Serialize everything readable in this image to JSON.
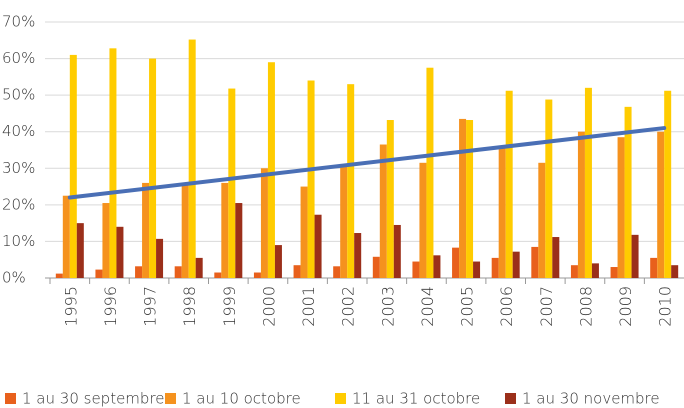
{
  "chart_data": {
    "type": "bar",
    "categories": [
      "1995",
      "1996",
      "1997",
      "1998",
      "1999",
      "2000",
      "2001",
      "2002",
      "2003",
      "2004",
      "2005",
      "2006",
      "2007",
      "2008",
      "2009",
      "2010"
    ],
    "series": [
      {
        "name": "1 au 30 septembre",
        "color": "#e8601c",
        "values": [
          1.2,
          2.3,
          3.2,
          3.2,
          1.5,
          1.5,
          3.5,
          3.2,
          5.8,
          4.5,
          8.3,
          5.5,
          8.5,
          3.5,
          3.0,
          5.5
        ]
      },
      {
        "name": "1 au 10 octobre",
        "color": "#f5921e",
        "values": [
          22.5,
          20.5,
          26,
          25.5,
          26,
          30,
          25,
          30.5,
          36.5,
          31.5,
          43.5,
          36,
          31.5,
          40,
          38.5,
          40
        ]
      },
      {
        "name": "11 au 31 octobre",
        "color": "#ffcc00",
        "values": [
          61,
          62.8,
          60,
          65.2,
          51.8,
          59,
          54,
          53,
          43.2,
          57.5,
          43.2,
          51.2,
          48.8,
          52,
          46.8,
          51.2
        ]
      },
      {
        "name": "1 au 30 novembre",
        "color": "#9b2f1a",
        "values": [
          15,
          14,
          10.7,
          5.5,
          20.5,
          9,
          17.3,
          12.3,
          14.5,
          6.2,
          4.5,
          7.2,
          11.2,
          4,
          11.8,
          3.5
        ]
      }
    ],
    "trendline": {
      "color": "#4a6fb5",
      "values": [
        22,
        41
      ]
    },
    "ylim": [
      0,
      70
    ],
    "yticks": [
      {
        "value": 0,
        "label": "0%"
      },
      {
        "value": 10,
        "label": "10%"
      },
      {
        "value": 20,
        "label": "20%"
      },
      {
        "value": 30,
        "label": "30%"
      },
      {
        "value": 40,
        "label": "40%"
      },
      {
        "value": 50,
        "label": "50%"
      },
      {
        "value": 60,
        "label": "60%"
      },
      {
        "value": 70,
        "label": "70%"
      }
    ],
    "grid": true,
    "legend": "bottom"
  }
}
